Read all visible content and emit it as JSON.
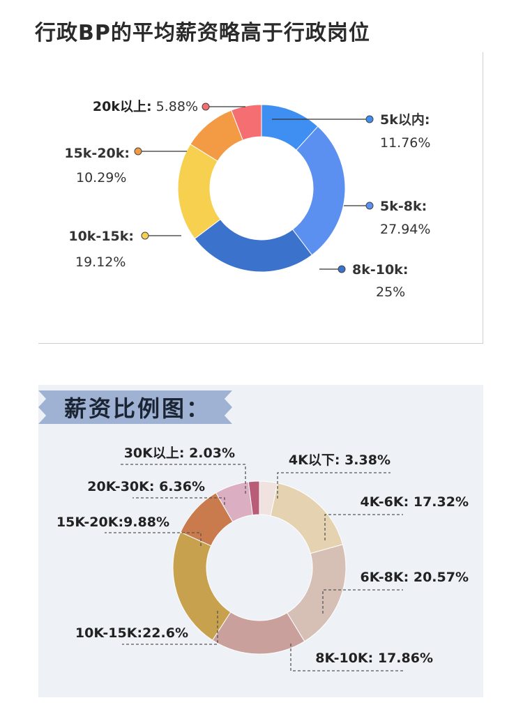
{
  "page": {
    "heading": "行政BP的平均薪资略高于行政岗位",
    "ribbon_title": "薪资比例图："
  },
  "chart_data": [
    {
      "type": "pie",
      "donut": true,
      "title": "",
      "slices": [
        {
          "label": "5k以内:",
          "value": 11.76,
          "value_text": "11.76%",
          "color": "#3f8ff2"
        },
        {
          "label": "5k-8k:",
          "value": 27.94,
          "value_text": "27.94%",
          "color": "#5b8ff0"
        },
        {
          "label": "8k-10k:",
          "value": 25,
          "value_text": "25%",
          "color": "#3a72cc"
        },
        {
          "label": "10k-15k:",
          "value": 19.12,
          "value_text": "19.12%",
          "color": "#f6d04e"
        },
        {
          "label": "15k-20k:",
          "value": 10.29,
          "value_text": "10.29%",
          "color": "#f39a45"
        },
        {
          "label": "20k以上:",
          "value": 5.88,
          "value_text": "5.88%",
          "color": "#f46e72"
        }
      ]
    },
    {
      "type": "pie",
      "donut": true,
      "title": "薪资比例图：",
      "slices": [
        {
          "label": "4K以下:",
          "value": 3.38,
          "value_text": "3.38%",
          "color": "#efe2df"
        },
        {
          "label": "4K-6K:",
          "value": 17.32,
          "value_text": "17.32%",
          "color": "#e5d2b0"
        },
        {
          "label": "6K-8K:",
          "value": 20.57,
          "value_text": "20.57%",
          "color": "#d6c0b5"
        },
        {
          "label": "8K-10K:",
          "value": 17.86,
          "value_text": "17.86%",
          "color": "#c9a09b"
        },
        {
          "label": "10K-15K:",
          "value": 22.6,
          "value_text": "22.6%",
          "color": "#c8a14f"
        },
        {
          "label": "15K-20K:",
          "value": 9.88,
          "value_text": "9.88%",
          "color": "#c97b4d"
        },
        {
          "label": "20K-30K:",
          "value": 6.36,
          "value_text": "6.36%",
          "color": "#dbaec2"
        },
        {
          "label": "30K以上:",
          "value": 2.03,
          "value_text": "2.03%",
          "color": "#b85c78"
        }
      ]
    }
  ]
}
